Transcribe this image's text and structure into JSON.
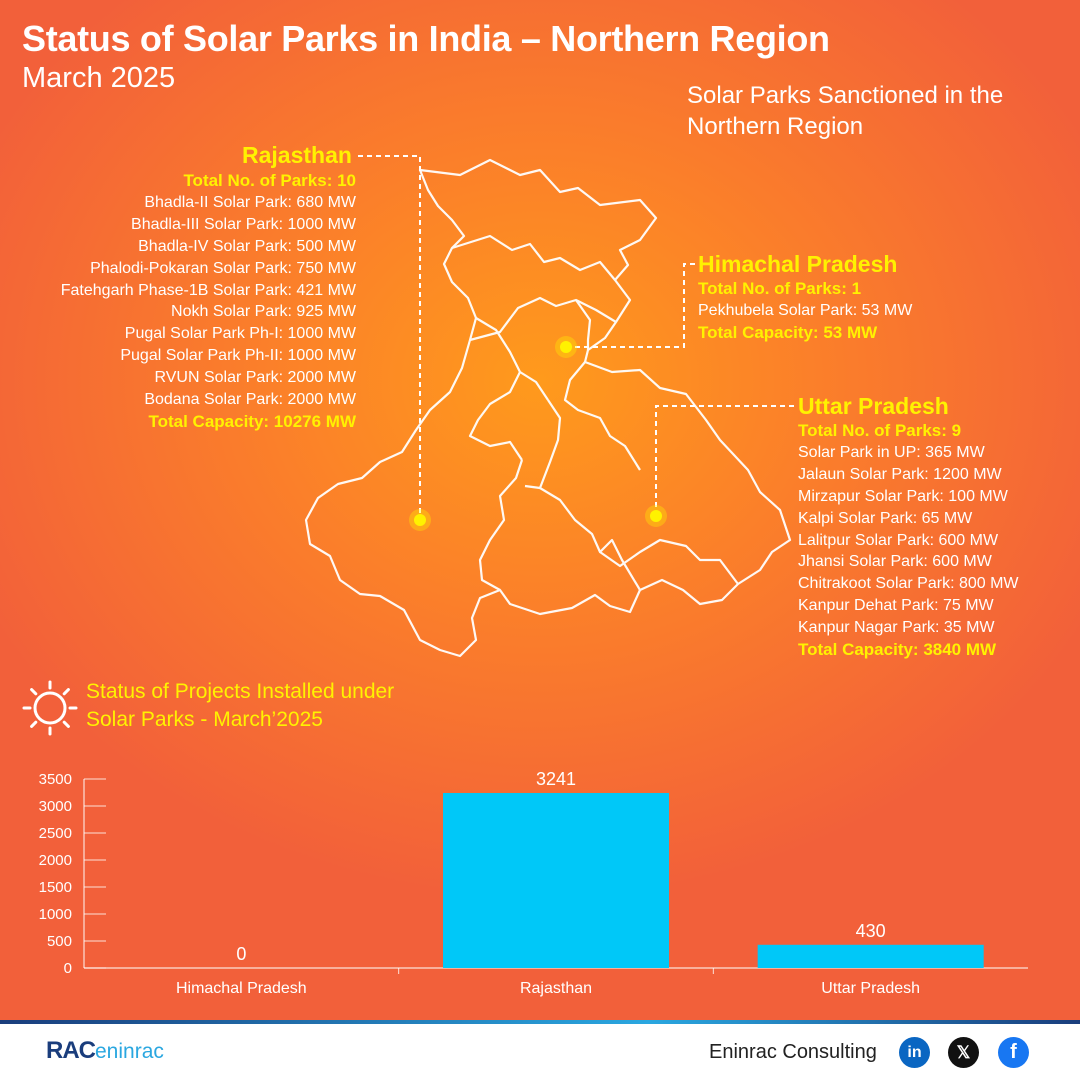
{
  "title": "Status of Solar Parks in India – Northern Region",
  "subtitle": "March 2025",
  "map_title": [
    "Solar Parks Sanctioned in the",
    "Northern Region"
  ],
  "rajasthan": {
    "name": "Rajasthan",
    "total_parks": "Total No. of Parks: 10",
    "parks": [
      "Bhadla-II Solar Park: 680 MW",
      "Bhadla-III Solar Park: 1000 MW",
      "Bhadla-IV Solar Park: 500 MW",
      "Phalodi-Pokaran Solar Park: 750 MW",
      "Fatehgarh Phase-1B Solar Park: 421 MW",
      "Nokh Solar Park: 925 MW",
      "Pugal Solar Park Ph-I: 1000 MW",
      "Pugal Solar Park Ph-II: 1000 MW",
      "RVUN Solar Park: 2000 MW",
      "Bodana Solar Park: 2000 MW"
    ],
    "total_capacity": "Total Capacity: 10276 MW"
  },
  "himachal": {
    "name": "Himachal Pradesh",
    "total_parks": "Total No. of Parks: 1",
    "parks": [
      "Pekhubela Solar Park: 53 MW"
    ],
    "total_capacity": "Total Capacity: 53 MW"
  },
  "uttar": {
    "name": "Uttar Pradesh",
    "total_parks": "Total No. of Parks: 9",
    "parks": [
      "Solar Park in UP: 365 MW",
      "Jalaun Solar Park: 1200 MW",
      "Mirzapur Solar Park: 100 MW",
      "Kalpi Solar Park: 65 MW",
      "Lalitpur Solar Park: 600 MW",
      "Jhansi Solar Park: 600 MW",
      "Chitrakoot Solar Park: 800 MW",
      "Kanpur Dehat Park: 75 MW",
      "Kanpur Nagar Park: 35 MW"
    ],
    "total_capacity": "Total Capacity: 3840 MW"
  },
  "status_title": [
    "Status of Projects Installed under",
    "Solar Parks - March’2025"
  ],
  "chart_data": {
    "type": "bar",
    "categories": [
      "Himachal Pradesh",
      "Rajasthan",
      "Uttar Pradesh"
    ],
    "values": [
      0,
      3241,
      430
    ],
    "title": "Status of Projects Installed under Solar Parks - March’2025",
    "xlabel": "",
    "ylabel": "",
    "ylim": [
      0,
      3500
    ],
    "yticks": [
      0,
      500,
      1000,
      1500,
      2000,
      2500,
      3000,
      3500
    ],
    "bar_color": "#00c8f8",
    "grid": false,
    "legend": "none",
    "data_labels": true
  },
  "footer": {
    "brand_a": "RAC",
    "brand_b": "eninrac",
    "company": "Eninrac Consulting",
    "social": [
      {
        "name": "linkedin-icon",
        "glyph": "in",
        "color": "#0a66c2"
      },
      {
        "name": "x-icon",
        "glyph": "𝕏",
        "color": "#111111"
      },
      {
        "name": "facebook-icon",
        "glyph": "f",
        "color": "#1877f2"
      }
    ]
  },
  "colors": {
    "accent": "#fff200",
    "bar": "#00c8f8",
    "text": "#ffffff"
  }
}
